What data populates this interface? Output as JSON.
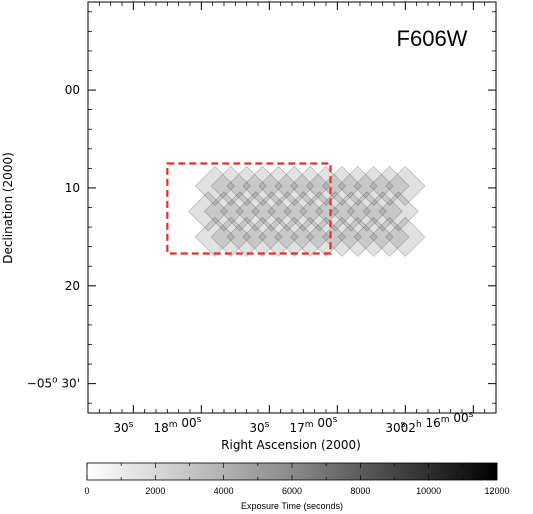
{
  "chart_data": {
    "type": "heatmap",
    "filter_label": "F606W",
    "xlabel": "Right Ascension (2000)",
    "ylabel": "Declination (2000)",
    "x_ticks": [
      {
        "sec": 1080,
        "main": "30",
        "u1": "s"
      },
      {
        "sec": 1050,
        "main": "18",
        "u1": "m",
        "main2": "00",
        "u2": "s"
      },
      {
        "sec": 1020,
        "main": "30",
        "u1": "s"
      },
      {
        "sec": 990,
        "main": "17",
        "u1": "m",
        "main2": "00",
        "u2": "s"
      },
      {
        "sec": 960,
        "main": "30",
        "u1": "s"
      },
      {
        "sec": 930,
        "main": "02",
        "u1": "h",
        "main2": "16",
        "u2": "m",
        "main3": "00",
        "u3": "s"
      }
    ],
    "y_ticks": [
      {
        "arcmin": 0,
        "label": "00"
      },
      {
        "arcmin": 10,
        "label": "10"
      },
      {
        "arcmin": 20,
        "label": "20"
      },
      {
        "arcmin": 30,
        "label": "−05",
        "deg_sup": "o",
        "suffix": " 30'"
      }
    ],
    "x_range_sec": [
      1100,
      920
    ],
    "y_range_arcmin": [
      -9,
      33
    ],
    "dashed_box": {
      "x_sec": [
        1065,
        993
      ],
      "y_arcmin": [
        7.5,
        16.7
      ],
      "color": "#e0302a"
    },
    "pointing_rows": [
      {
        "dec": 9.8,
        "ra": [
          1044,
          1037,
          1030,
          1023,
          1016,
          1009,
          1002,
          995,
          988,
          981,
          974,
          967,
          960
        ]
      },
      {
        "dec": 12.4,
        "ra": [
          1047,
          1040,
          1033,
          1026,
          1019,
          1012,
          1005,
          998,
          991,
          984,
          977,
          970,
          963
        ]
      },
      {
        "dec": 15.0,
        "ra": [
          1044,
          1037,
          1030,
          1023,
          1016,
          1009,
          1002,
          995,
          988,
          981,
          974,
          967,
          960
        ]
      }
    ],
    "tile_half_diagonal_arcmin": 2.0,
    "colorbar": {
      "title": "Exposure Time (seconds)",
      "min": 0,
      "max": 12000,
      "ticks": [
        0,
        2000,
        4000,
        6000,
        8000,
        10000,
        12000
      ]
    }
  }
}
